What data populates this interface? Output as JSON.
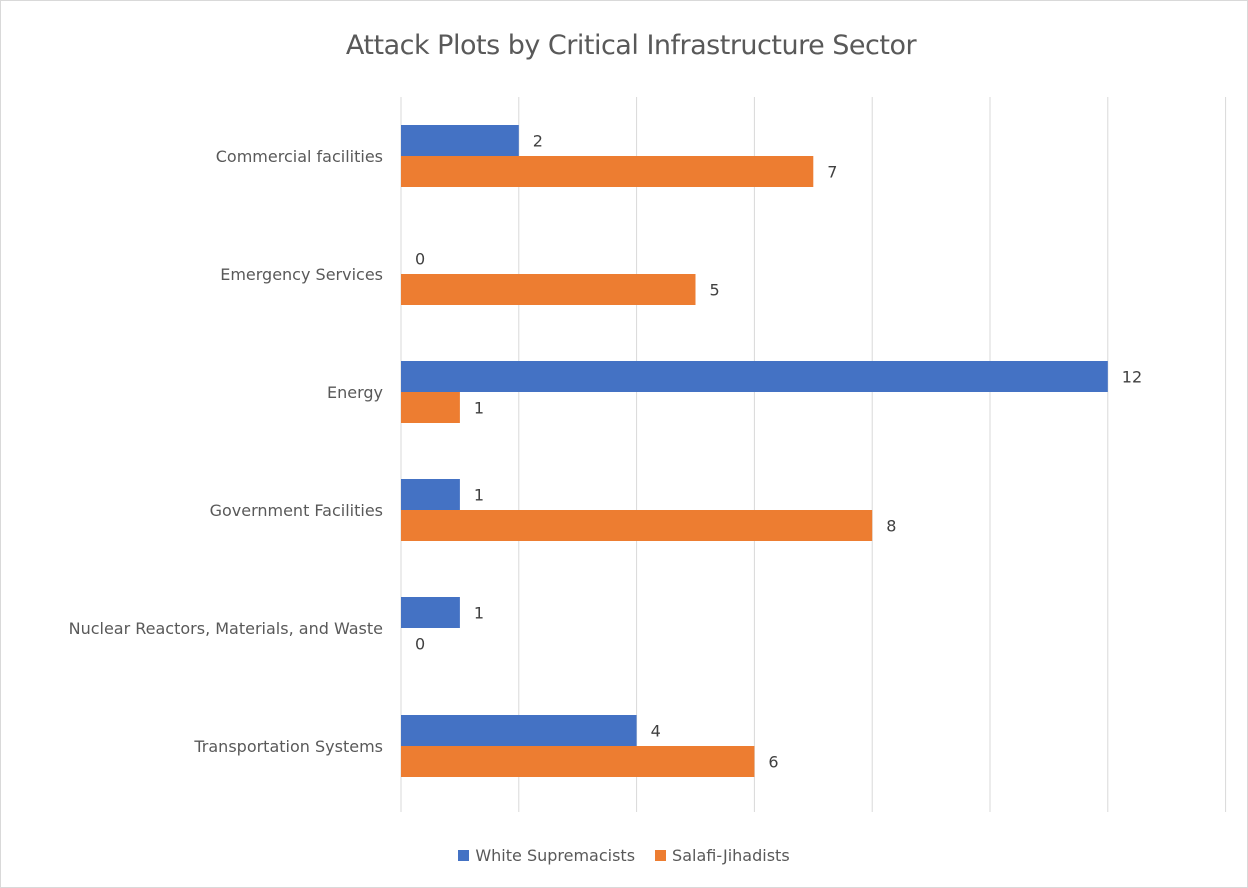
{
  "chart_data": {
    "type": "bar",
    "orientation": "horizontal",
    "title": "Attack Plots by Critical Infrastructure Sector",
    "categories": [
      "Commercial facilities",
      "Emergency Services",
      "Energy",
      "Government Facilities",
      "Nuclear Reactors, Materials, and Waste",
      "Transportation Systems"
    ],
    "series": [
      {
        "name": "White Supremacists",
        "values": [
          2,
          0,
          12,
          1,
          1,
          4
        ],
        "color": "#4472C4"
      },
      {
        "name": "Salafi-Jihadists",
        "values": [
          7,
          5,
          1,
          8,
          0,
          6
        ],
        "color": "#ED7D31"
      }
    ],
    "xlim": [
      0,
      14
    ],
    "grid": true,
    "legend": "bottom",
    "data_labels": true
  }
}
